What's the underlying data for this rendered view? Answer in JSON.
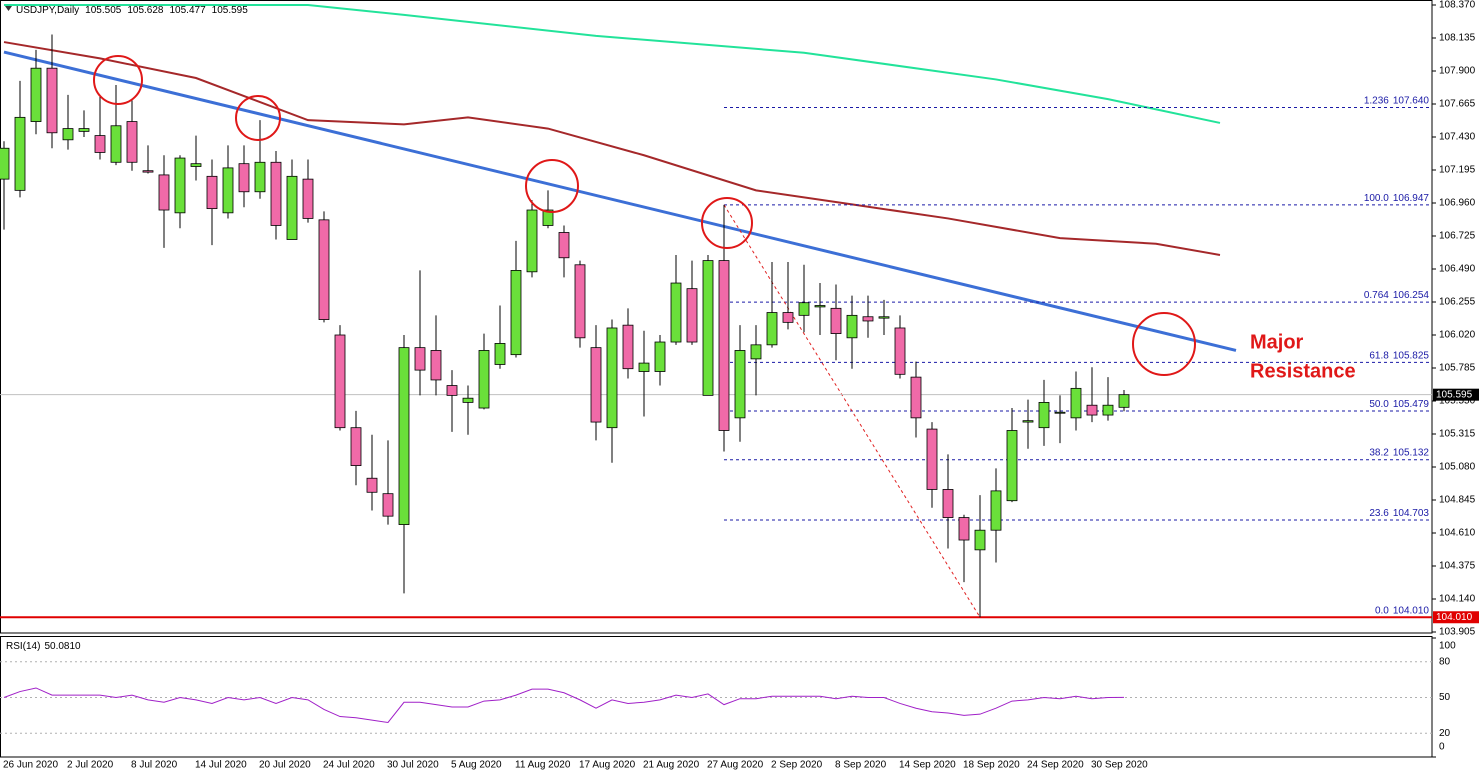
{
  "chart_data": {
    "type": "candlestick",
    "title": "USDJPY,Daily",
    "categories": [
      "26 Jun 2020",
      null,
      null,
      null,
      "2 Jul 2020",
      null,
      null,
      null,
      "8 Jul 2020",
      null,
      null,
      null,
      "14 Jul 2020",
      null,
      null,
      null,
      "20 Jul 2020",
      null,
      null,
      null,
      "24 Jul 2020",
      null,
      null,
      null,
      "30 Jul 2020",
      null,
      null,
      null,
      "5 Aug 2020",
      null,
      null,
      null,
      "11 Aug 2020",
      null,
      null,
      null,
      "17 Aug 2020",
      null,
      null,
      null,
      "21 Aug 2020",
      null,
      null,
      null,
      "27 Aug 2020",
      null,
      null,
      null,
      "2 Sep 2020",
      null,
      null,
      null,
      "8 Sep 2020",
      null,
      null,
      null,
      "14 Sep 2020",
      null,
      null,
      null,
      "18 Sep 2020",
      null,
      null,
      null,
      "24 Sep 2020",
      null,
      null,
      null,
      "30 Sep 2020",
      null,
      null
    ],
    "candles": {
      "open": [
        107.13,
        107.05,
        107.54,
        107.92,
        107.41,
        107.47,
        107.44,
        107.25,
        107.54,
        107.19,
        107.16,
        106.89,
        107.22,
        107.15,
        106.89,
        107.24,
        107.04,
        107.25,
        106.7,
        107.13,
        106.84,
        106.02,
        105.36,
        105.0,
        104.89,
        104.67,
        105.93,
        105.91,
        105.66,
        105.54,
        105.5,
        105.81,
        105.88,
        106.47,
        106.8,
        106.75,
        106.52,
        105.93,
        105.36,
        106.09,
        105.76,
        105.76,
        105.97,
        106.35,
        105.59,
        106.55,
        105.43,
        105.85,
        105.95,
        106.18,
        106.16,
        106.22,
        106.21,
        106.0,
        106.15,
        106.14,
        106.07,
        105.72,
        105.35,
        104.92,
        104.72,
        104.49,
        104.63,
        104.84,
        105.4,
        105.36,
        105.47,
        105.43,
        105.52,
        105.45,
        105.505
      ],
      "high": [
        107.4,
        107.83,
        108.05,
        108.16,
        107.73,
        107.62,
        107.73,
        107.8,
        107.69,
        107.37,
        107.3,
        107.3,
        107.44,
        107.27,
        107.37,
        107.37,
        107.55,
        107.33,
        107.27,
        107.27,
        106.9,
        106.09,
        105.48,
        105.31,
        105.27,
        106.02,
        106.48,
        106.16,
        105.77,
        105.66,
        106.03,
        106.23,
        106.69,
        106.98,
        107.05,
        106.8,
        106.55,
        106.09,
        106.13,
        106.21,
        106.05,
        106.02,
        106.59,
        106.55,
        106.59,
        106.947,
        106.09,
        106.09,
        106.54,
        106.54,
        106.52,
        106.39,
        106.38,
        106.3,
        106.3,
        106.27,
        106.16,
        105.83,
        105.4,
        105.17,
        104.74,
        104.88,
        105.07,
        105.5,
        105.56,
        105.7,
        105.59,
        105.76,
        105.79,
        105.72,
        105.628
      ],
      "low": [
        106.77,
        107.0,
        107.45,
        107.35,
        107.34,
        107.43,
        107.27,
        107.23,
        107.19,
        107.17,
        106.64,
        106.78,
        107.12,
        106.66,
        106.85,
        106.93,
        106.99,
        106.7,
        106.7,
        106.82,
        106.11,
        105.34,
        104.95,
        104.77,
        104.67,
        104.18,
        105.59,
        105.59,
        105.33,
        105.31,
        105.49,
        105.78,
        105.86,
        106.43,
        106.78,
        106.43,
        105.93,
        105.27,
        105.11,
        105.71,
        105.44,
        105.66,
        105.95,
        105.95,
        105.59,
        105.19,
        105.26,
        105.59,
        105.93,
        106.06,
        106.04,
        106.02,
        105.84,
        105.78,
        106.0,
        106.02,
        105.71,
        105.29,
        104.79,
        104.5,
        104.26,
        104.01,
        104.4,
        104.83,
        105.21,
        105.23,
        105.25,
        105.34,
        105.4,
        105.41,
        105.477
      ],
      "close": [
        107.35,
        107.57,
        107.92,
        107.46,
        107.49,
        107.49,
        107.32,
        107.51,
        107.25,
        107.18,
        106.91,
        107.28,
        107.24,
        106.92,
        107.21,
        107.04,
        107.25,
        106.8,
        107.15,
        106.85,
        106.13,
        105.36,
        105.09,
        104.9,
        104.73,
        105.93,
        105.77,
        105.7,
        105.59,
        105.57,
        105.91,
        105.96,
        106.48,
        106.91,
        106.91,
        106.57,
        106.0,
        105.4,
        106.07,
        105.78,
        105.82,
        105.97,
        106.39,
        105.97,
        106.55,
        105.34,
        105.91,
        105.95,
        106.18,
        106.11,
        106.25,
        106.23,
        106.03,
        106.16,
        106.12,
        106.15,
        105.74,
        105.43,
        104.92,
        104.72,
        104.56,
        104.63,
        104.91,
        105.34,
        105.41,
        105.54,
        105.47,
        105.64,
        105.45,
        105.52,
        105.595
      ]
    },
    "up_color": "#6ae03a",
    "down_color": "#f06aa8",
    "ylim": [
      103.905,
      108.37
    ],
    "yticks": [
      {
        "value": 108.37,
        "label": "108.370"
      },
      {
        "value": 108.135,
        "label": "108.135"
      },
      {
        "value": 107.9,
        "label": "107.900"
      },
      {
        "value": 107.665,
        "label": "107.665"
      },
      {
        "value": 107.43,
        "label": "107.430"
      },
      {
        "value": 107.195,
        "label": "107.195"
      },
      {
        "value": 106.96,
        "label": "106.960"
      },
      {
        "value": 106.725,
        "label": "106.725"
      },
      {
        "value": 106.49,
        "label": "106.490"
      },
      {
        "value": 106.255,
        "label": "106.255"
      },
      {
        "value": 106.02,
        "label": "106.020"
      },
      {
        "value": 105.785,
        "label": "105.785"
      },
      {
        "value": 105.55,
        "label": "105.550"
      },
      {
        "value": 105.315,
        "label": "105.315"
      },
      {
        "value": 105.08,
        "label": "105.080"
      },
      {
        "value": 104.845,
        "label": "104.845"
      },
      {
        "value": 104.61,
        "label": "104.610"
      },
      {
        "value": 104.375,
        "label": "104.375"
      },
      {
        "value": 104.14,
        "label": "104.140"
      },
      {
        "value": 103.905,
        "label": "103.905"
      }
    ],
    "current_price": 105.595,
    "support": {
      "value": 104.01,
      "label": "104.010",
      "color": "#e00000"
    },
    "overlays": [
      {
        "color": "#22e39a",
        "width": 2,
        "x": [
          0,
          19,
          25,
          37,
          50,
          62,
          69,
          76
        ],
        "values": [
          108.37,
          108.37,
          108.3,
          108.15,
          108.03,
          107.84,
          107.7,
          107.53
        ]
      },
      {
        "color": "#a5282a",
        "width": 2,
        "x": [
          0,
          6,
          12,
          19,
          25,
          29,
          34,
          40,
          47,
          53,
          59,
          66,
          72,
          76
        ],
        "values": [
          108.106,
          107.99,
          107.85,
          107.55,
          107.52,
          107.57,
          107.49,
          107.3,
          107.05,
          106.95,
          106.85,
          106.71,
          106.67,
          106.59
        ]
      },
      {
        "color": "#3c6fd6",
        "width": 3,
        "x": [
          0,
          77
        ],
        "values": [
          108.035,
          105.91
        ]
      }
    ],
    "fib": {
      "color": "#1a1aa6",
      "levels": [
        {
          "ratio": "1.236",
          "value": 107.64,
          "label": "107.640"
        },
        {
          "ratio": "100.0",
          "value": 106.947,
          "label": "106.947"
        },
        {
          "ratio": "0.764",
          "value": 106.254,
          "label": "106.254"
        },
        {
          "ratio": "61.8",
          "value": 105.825,
          "label": "105.825"
        },
        {
          "ratio": "50.0",
          "value": 105.479,
          "label": "105.479"
        },
        {
          "ratio": "38.2",
          "value": 105.132,
          "label": "105.132"
        },
        {
          "ratio": "23.6",
          "value": 104.703,
          "label": "104.703"
        },
        {
          "ratio": "0.0",
          "value": 104.01,
          "label": "104.010"
        }
      ]
    },
    "annotation": [
      "Major",
      "Resistance"
    ],
    "rsi": {
      "name": "RSI(14)",
      "current_label": "50.0810",
      "color": "#a020c8",
      "ylim": [
        0,
        100
      ],
      "yticks": [
        100,
        80,
        50,
        20,
        0
      ],
      "values": [
        50,
        55,
        58,
        52,
        52,
        52,
        52,
        50,
        52,
        48,
        46,
        50,
        48,
        45,
        50,
        48,
        50,
        45,
        50,
        48,
        40,
        34,
        33,
        31,
        29,
        46,
        46,
        44,
        42,
        42,
        47,
        48,
        52,
        57,
        57,
        54,
        48,
        41,
        48,
        45,
        46,
        48,
        52,
        50,
        53,
        44,
        49,
        49,
        51,
        51,
        51,
        51,
        49,
        51,
        50,
        50,
        45,
        41,
        38,
        37,
        35,
        36,
        41,
        47,
        48,
        50,
        49,
        51,
        49,
        50,
        50.081
      ]
    }
  }
}
